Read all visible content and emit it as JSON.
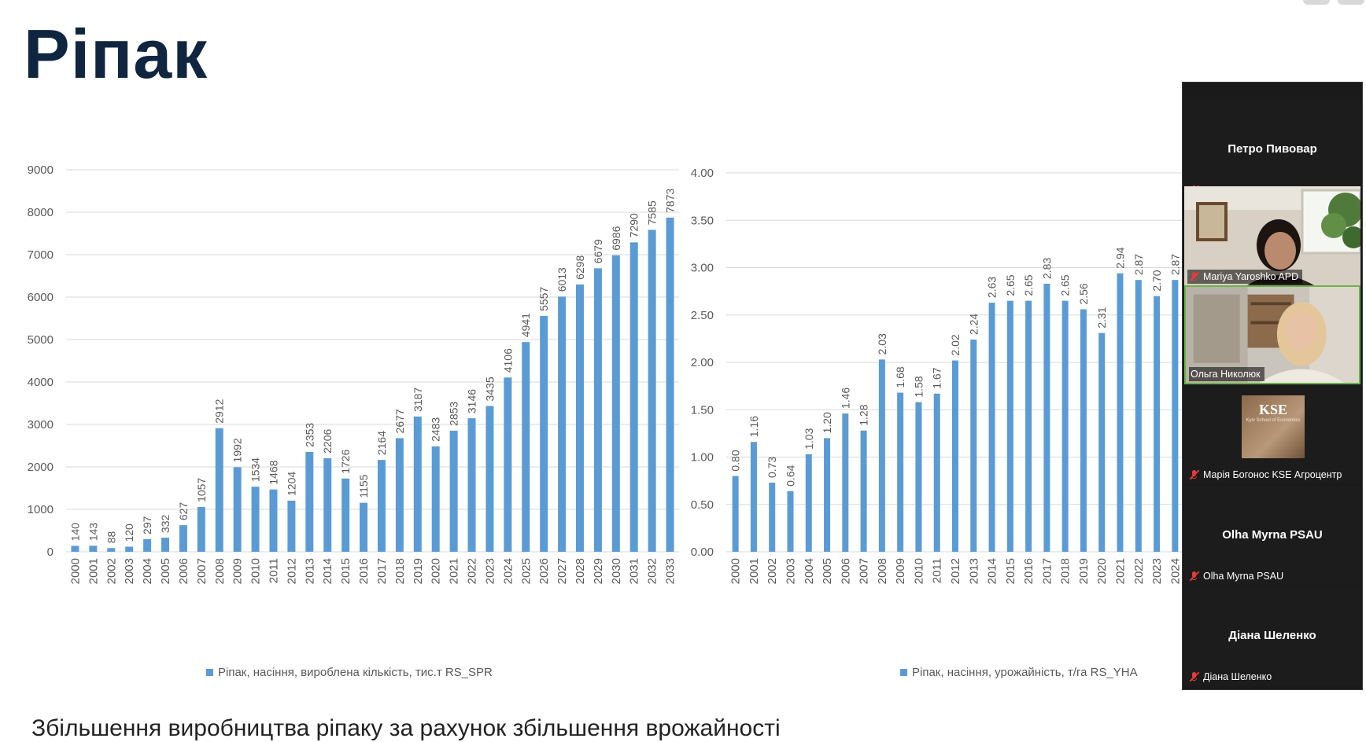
{
  "slide": {
    "title": "Ріпак",
    "bottom_text": "Збільшення виробництва ріпаку за рахунок збільшення врожайності"
  },
  "colors": {
    "bar": "#5b9bd5",
    "title": "#10253f",
    "grid": "#d9d9d9",
    "text": "#595959",
    "zoom_bg": "#1a1a1a",
    "active_speaker": "#6bb34a",
    "muted": "#e23b3b"
  },
  "chart_data": [
    {
      "type": "bar",
      "title": "",
      "categories": [
        "2000",
        "2001",
        "2002",
        "2003",
        "2004",
        "2005",
        "2006",
        "2007",
        "2008",
        "2009",
        "2010",
        "2011",
        "2012",
        "2013",
        "2014",
        "2015",
        "2016",
        "2017",
        "2018",
        "2019",
        "2020",
        "2021",
        "2022",
        "2023",
        "2024",
        "2025",
        "2026",
        "2027",
        "2028",
        "2029",
        "2030",
        "2031",
        "2032",
        "2033"
      ],
      "series": [
        {
          "name": "Ріпак, насіння, вироблена кількість, тис.т RS_SPR",
          "values": [
            140,
            143,
            88,
            120,
            297,
            332,
            627,
            1057,
            2912,
            1992,
            1534,
            1468,
            1204,
            2353,
            2206,
            1726,
            1155,
            2164,
            2677,
            3187,
            2483,
            2853,
            3146,
            3435,
            4106,
            4941,
            5557,
            6013,
            6298,
            6679,
            6986,
            7290,
            7585,
            7873
          ]
        }
      ],
      "value_labels": [
        "140",
        "143",
        "88",
        "120",
        "297",
        "332",
        "627",
        "1057",
        "2912",
        "1992",
        "1534",
        "1468",
        "1204",
        "2353",
        "2206",
        "1726",
        "1155",
        "2164",
        "2677",
        "3187",
        "2483",
        "2853",
        "3146",
        "3435",
        "4106",
        "4941",
        "5557",
        "6013",
        "6298",
        "6679",
        "6986",
        "7290",
        "7585",
        "7873"
      ],
      "ylim": [
        0,
        9000
      ],
      "yticks": [
        "0",
        "1000",
        "2000",
        "3000",
        "4000",
        "5000",
        "6000",
        "7000",
        "8000",
        "9000"
      ],
      "grid": true,
      "legend": "bottom"
    },
    {
      "type": "bar",
      "title": "",
      "categories": [
        "2000",
        "2001",
        "2002",
        "2003",
        "2004",
        "2005",
        "2006",
        "2007",
        "2008",
        "2009",
        "2010",
        "2011",
        "2012",
        "2013",
        "2014",
        "2015",
        "2016",
        "2017",
        "2018",
        "2019",
        "2020",
        "2021",
        "2022",
        "2023",
        "2024"
      ],
      "series": [
        {
          "name": "Ріпак, насіння, урожайність, т/га RS_YHA",
          "values": [
            0.8,
            1.16,
            0.73,
            0.64,
            1.03,
            1.2,
            1.46,
            1.28,
            2.03,
            1.68,
            1.58,
            1.67,
            2.02,
            2.24,
            2.63,
            2.65,
            2.65,
            2.83,
            2.65,
            2.56,
            2.31,
            2.94,
            2.87,
            2.7,
            2.87
          ]
        }
      ],
      "value_labels": [
        "0.80",
        "1.16",
        "0.73",
        "0.64",
        "1.03",
        "1.20",
        "1.46",
        "1.28",
        "2.03",
        "1.68",
        "1.58",
        "1.67",
        "2.02",
        "2.24",
        "2.63",
        "2.65",
        "2.65",
        "2.83",
        "2.65",
        "2.56",
        "2.31",
        "2.94",
        "2.87",
        "2.70",
        "2.87"
      ],
      "ylim": [
        0,
        4.0
      ],
      "yticks": [
        "0.00",
        "0.50",
        "1.00",
        "1.50",
        "2.00",
        "2.50",
        "3.00",
        "3.50",
        "4.00"
      ],
      "grid": true,
      "legend": "bottom"
    }
  ],
  "zoom": {
    "participants": [
      {
        "name": "Петро Пивовар",
        "label": "Петро Пивовар",
        "video": false,
        "muted": true
      },
      {
        "name": "Mariya Yaroshko APD",
        "label": "Mariya Yaroshko APD",
        "video": true,
        "muted": true
      },
      {
        "name": "Ольга Николюк",
        "label": "Ольга Николюк",
        "video": true,
        "muted": false,
        "active": true
      },
      {
        "name": "Марія Богонос KSE Агроцентр",
        "label": "Марія Богонос KSE Агроцентр",
        "video": false,
        "muted": true,
        "logo": "KSE",
        "logo_sub": "Kyiv School of Economics"
      },
      {
        "name": "Olha Myrna PSAU",
        "label": "Olha Myrna PSAU",
        "video": false,
        "muted": true
      },
      {
        "name": "Діана Шеленко",
        "label": "Діана Шеленко",
        "video": false,
        "muted": true
      }
    ]
  }
}
